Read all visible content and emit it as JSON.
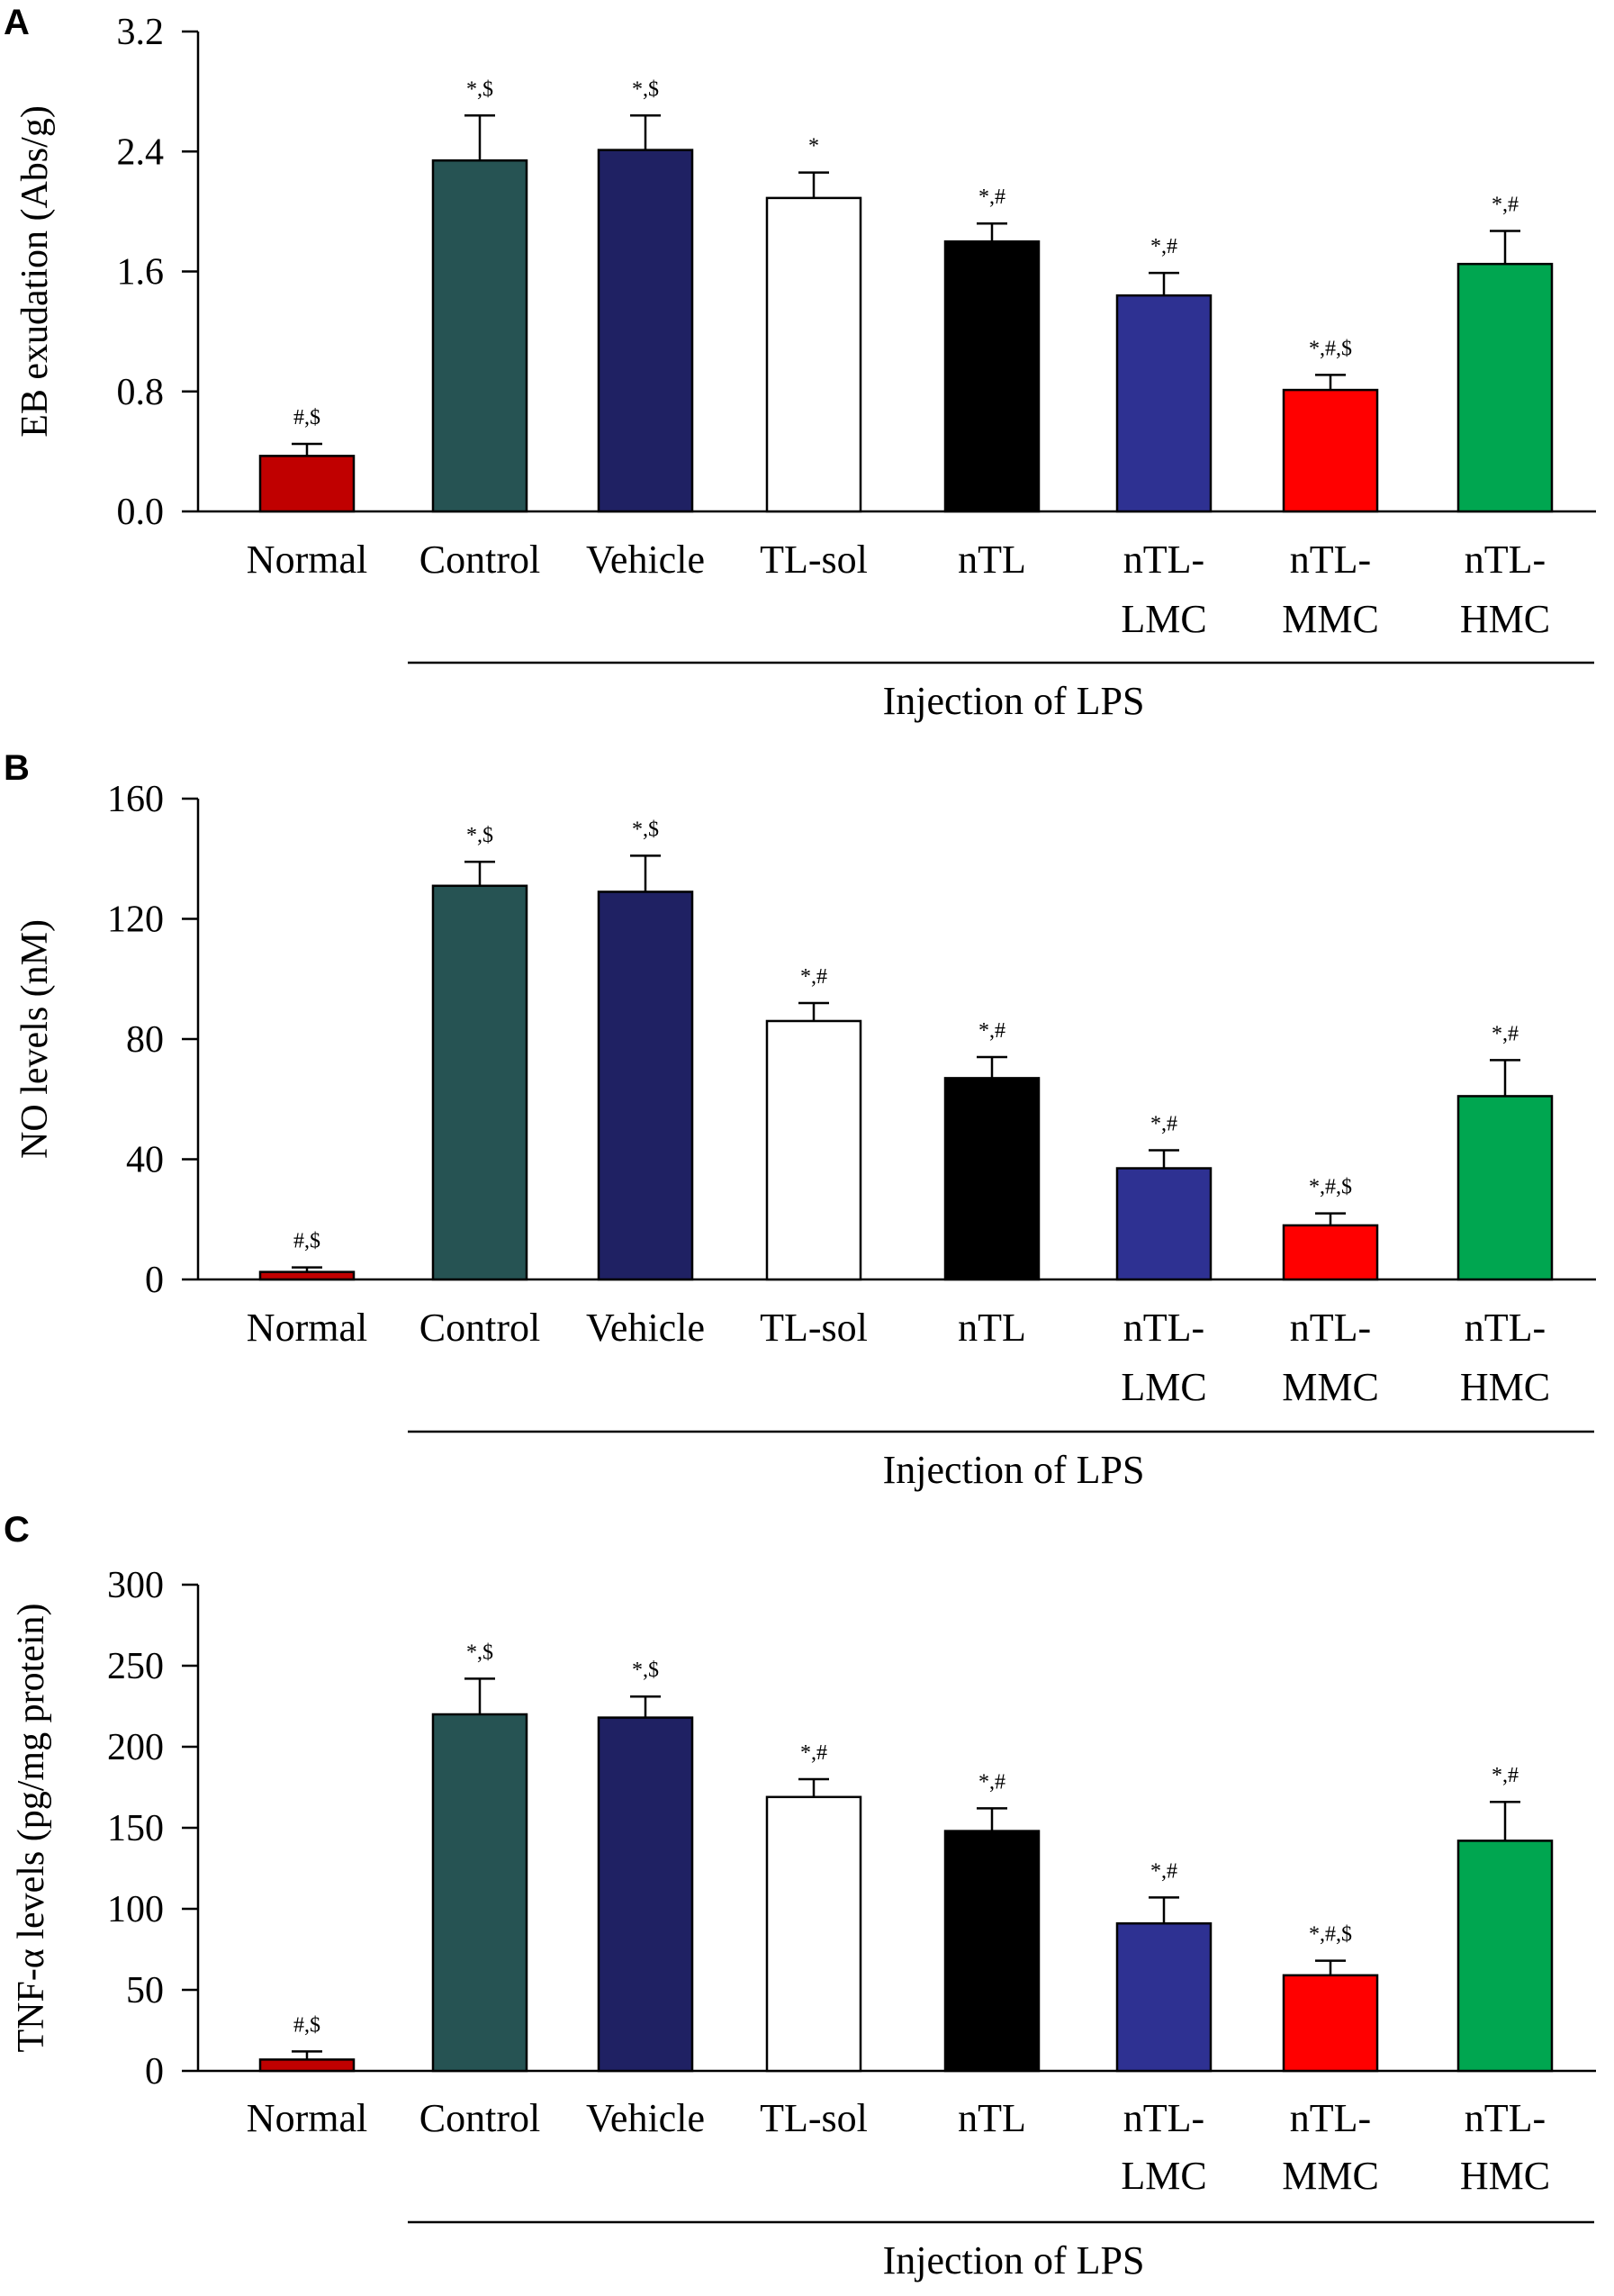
{
  "chart_data": [
    {
      "type": "bar",
      "panel": "A",
      "ylabel": "EB exudation (Abs/g)",
      "ylim": [
        0,
        3.2
      ],
      "yticks": [
        "0.0",
        "0.8",
        "1.6",
        "2.4",
        "3.2"
      ],
      "group_label": "Injection of LPS",
      "categories": [
        "Normal",
        "Control",
        "Vehicle",
        "TL-sol",
        "nTL",
        "nTL-LMC",
        "nTL-MMC",
        "nTL-HMC"
      ],
      "category_lines": [
        [
          "Normal"
        ],
        [
          "Control"
        ],
        [
          "Vehicle"
        ],
        [
          "TL-sol"
        ],
        [
          "nTL"
        ],
        [
          "nTL-",
          "LMC"
        ],
        [
          "nTL-",
          "MMC"
        ],
        [
          "nTL-",
          "HMC"
        ]
      ],
      "values": [
        0.37,
        2.34,
        2.41,
        2.09,
        1.8,
        1.44,
        0.81,
        1.65
      ],
      "errors": [
        0.08,
        0.3,
        0.23,
        0.17,
        0.12,
        0.15,
        0.1,
        0.22
      ],
      "significance": [
        "#,$",
        "*,$",
        "*,$",
        "*",
        "*,#",
        "*,#",
        "*,#,$",
        "*,#"
      ],
      "colors": [
        "#c00000",
        "#265353",
        "#1f2163",
        "#ffffff",
        "#000000",
        "#2e3192",
        "#ff0000",
        "#00a650"
      ]
    },
    {
      "type": "bar",
      "panel": "B",
      "ylabel": "NO levels  (nM)",
      "ylim": [
        0,
        160
      ],
      "yticks": [
        "0",
        "40",
        "80",
        "120",
        "160"
      ],
      "group_label": "Injection of LPS",
      "categories": [
        "Normal",
        "Control",
        "Vehicle",
        "TL-sol",
        "nTL",
        "nTL-LMC",
        "nTL-MMC",
        "nTL-HMC"
      ],
      "category_lines": [
        [
          "Normal"
        ],
        [
          "Control"
        ],
        [
          "Vehicle"
        ],
        [
          "TL-sol"
        ],
        [
          "nTL"
        ],
        [
          "nTL-",
          "LMC"
        ],
        [
          "nTL-",
          "MMC"
        ],
        [
          "nTL-",
          "HMC"
        ]
      ],
      "values": [
        2.5,
        131,
        129,
        86,
        67,
        37,
        18,
        61
      ],
      "errors": [
        1.5,
        8,
        12,
        6,
        7,
        6,
        4,
        12
      ],
      "significance": [
        "#,$",
        "*,$",
        "*,$",
        "*,#",
        "*,#",
        "*,#",
        "*,#,$",
        "*,#"
      ],
      "colors": [
        "#c00000",
        "#265353",
        "#1f2163",
        "#ffffff",
        "#000000",
        "#2e3192",
        "#ff0000",
        "#00a650"
      ]
    },
    {
      "type": "bar",
      "panel": "C",
      "ylabel": "TNF-α levels (pg/mg protein)",
      "ylim": [
        0,
        300
      ],
      "yticks": [
        "0",
        "50",
        "100",
        "150",
        "200",
        "250",
        "300"
      ],
      "group_label": "Injection of LPS",
      "categories": [
        "Normal",
        "Control",
        "Vehicle",
        "TL-sol",
        "nTL",
        "nTL-LMC",
        "nTL-MMC",
        "nTL-HMC"
      ],
      "category_lines": [
        [
          "Normal"
        ],
        [
          "Control"
        ],
        [
          "Vehicle"
        ],
        [
          "TL-sol"
        ],
        [
          "nTL"
        ],
        [
          "nTL-",
          "LMC"
        ],
        [
          "nTL-",
          "MMC"
        ],
        [
          "nTL-",
          "HMC"
        ]
      ],
      "values": [
        7,
        220,
        218,
        169,
        148,
        91,
        59,
        142
      ],
      "errors": [
        5,
        22,
        13,
        11,
        14,
        16,
        9,
        24
      ],
      "significance": [
        "#,$",
        "*,$",
        "*,$",
        "*,#",
        "*,#",
        "*,#",
        "*,#,$",
        "*,#"
      ],
      "colors": [
        "#c00000",
        "#265353",
        "#1f2163",
        "#ffffff",
        "#000000",
        "#2e3192",
        "#ff0000",
        "#00a650"
      ]
    }
  ]
}
